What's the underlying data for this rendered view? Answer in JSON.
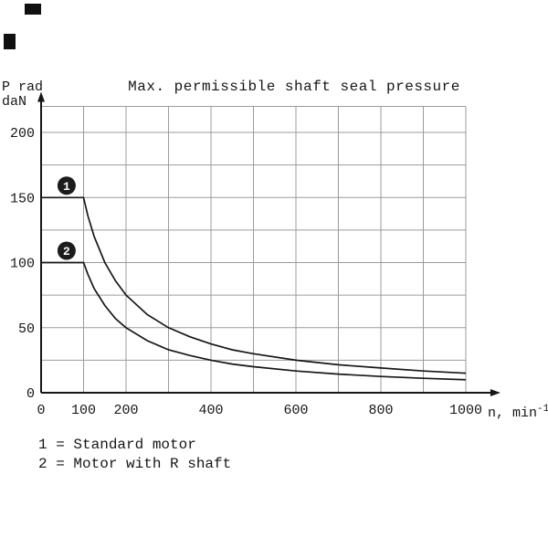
{
  "header": {
    "title": "Max. permissible shaft seal pressure"
  },
  "axes_labels": {
    "y_line1": "P rad",
    "y_line2": "daN",
    "x_base": "n, min",
    "x_exponent": "-1"
  },
  "legend": {
    "items": [
      "1 = Standard motor",
      "2 = Motor with R shaft"
    ]
  },
  "colors": {
    "ink": "#161616",
    "grid": "#9b9b9b",
    "background": "#ffffff",
    "marker_fill": "#1c1c1c",
    "marker_text": "#ffffff"
  },
  "chart_data": {
    "type": "line",
    "title": "Max. permissible shaft seal pressure",
    "xlabel": "n, min⁻¹",
    "ylabel": "P rad daN",
    "xlim": [
      0,
      1060
    ],
    "ylim": [
      0,
      220
    ],
    "x_ticks": [
      0,
      100,
      200,
      400,
      600,
      800,
      1000
    ],
    "y_ticks": [
      0,
      50,
      100,
      150,
      200
    ],
    "x_grid_step": 100,
    "y_grid_step": 25,
    "grid": true,
    "legend_position": "below",
    "series": [
      {
        "name": "Standard motor",
        "marker": "1",
        "x": [
          0,
          100,
          110,
          125,
          150,
          175,
          200,
          250,
          300,
          350,
          400,
          450,
          500,
          600,
          700,
          800,
          900,
          1000
        ],
        "y": [
          150,
          150,
          136,
          120,
          100,
          86,
          75,
          60,
          50,
          43,
          37.5,
          33,
          30,
          25,
          21.5,
          19,
          16.7,
          15
        ]
      },
      {
        "name": "Motor with R shaft",
        "marker": "2",
        "x": [
          0,
          100,
          110,
          125,
          150,
          175,
          200,
          250,
          300,
          350,
          400,
          450,
          500,
          600,
          700,
          800,
          900,
          1000
        ],
        "y": [
          100,
          100,
          91,
          80,
          67,
          57,
          50,
          40,
          33,
          28.6,
          25,
          22,
          20,
          16.7,
          14.3,
          12.5,
          11.1,
          10
        ]
      }
    ]
  }
}
